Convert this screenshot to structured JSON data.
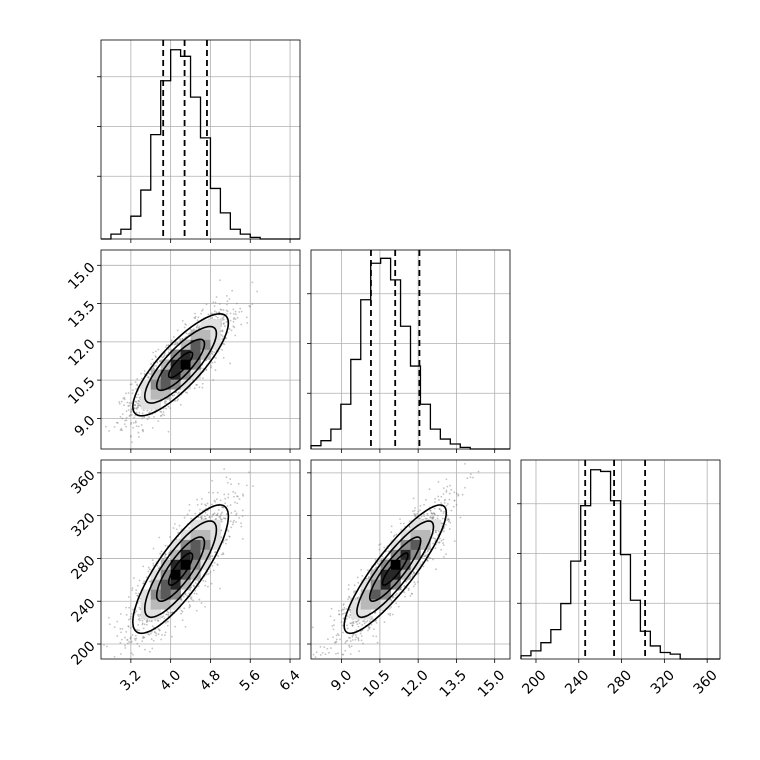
{
  "chart_data": {
    "type": "corner",
    "grid": true,
    "variables": [
      {
        "index": 0,
        "label": "",
        "range": [
          2.6,
          6.6
        ],
        "ticks": [
          "3.2",
          "4.0",
          "4.8",
          "5.6",
          "6.4"
        ],
        "tick_values": [
          3.2,
          4.0,
          4.8,
          5.6,
          6.4
        ],
        "quantiles": [
          3.85,
          4.28,
          4.73
        ]
      },
      {
        "index": 1,
        "label": "",
        "range": [
          7.8,
          15.6
        ],
        "ticks": [
          "9.0",
          "10.5",
          "12.0",
          "13.5",
          "15.0"
        ],
        "tick_values": [
          9.0,
          10.5,
          12.0,
          13.5,
          15.0
        ],
        "quantiles": [
          10.15,
          11.1,
          12.05
        ]
      },
      {
        "index": 2,
        "label": "",
        "range": [
          186,
          372
        ],
        "ticks": [
          "200",
          "240",
          "280",
          "320",
          "360"
        ],
        "tick_values": [
          200,
          240,
          280,
          320,
          360
        ],
        "quantiles": [
          246,
          273,
          302
        ]
      }
    ],
    "histograms": [
      {
        "var": 0,
        "edges_start": 2.6,
        "bin_width": 0.2,
        "counts": [
          0,
          3,
          6,
          14,
          30,
          64,
          97,
          116,
          112,
          87,
          62,
          31,
          16,
          6,
          3,
          1,
          0,
          0,
          0,
          0
        ],
        "ymax": 122
      },
      {
        "var": 1,
        "edges_start": 7.8,
        "bin_width": 0.39,
        "counts": [
          2,
          5,
          12,
          27,
          54,
          90,
          112,
          115,
          102,
          74,
          50,
          27,
          12,
          6,
          3,
          1,
          0,
          0,
          0,
          0
        ],
        "ymax": 120
      },
      {
        "var": 2,
        "edges_start": 186,
        "bin_width": 9.3,
        "counts": [
          2,
          5,
          10,
          18,
          34,
          60,
          94,
          116,
          115,
          97,
          64,
          36,
          17,
          8,
          4,
          3,
          0,
          0,
          0,
          0
        ],
        "ymax": 122
      }
    ],
    "scatter_pairs": [
      {
        "x_var": 0,
        "y_var": 1,
        "center": [
          4.2,
          11.1
        ],
        "sd": [
          0.48,
          1.0
        ],
        "corr": 0.82
      },
      {
        "x_var": 0,
        "y_var": 2,
        "center": [
          4.2,
          270
        ],
        "sd": [
          0.48,
          30
        ],
        "corr": 0.82
      },
      {
        "x_var": 1,
        "y_var": 2,
        "center": [
          11.1,
          270
        ],
        "sd": [
          1.0,
          30
        ],
        "corr": 0.88
      }
    ],
    "contour_levels_sigma": [
      0.5,
      1.0,
      1.5,
      2.0
    ]
  }
}
